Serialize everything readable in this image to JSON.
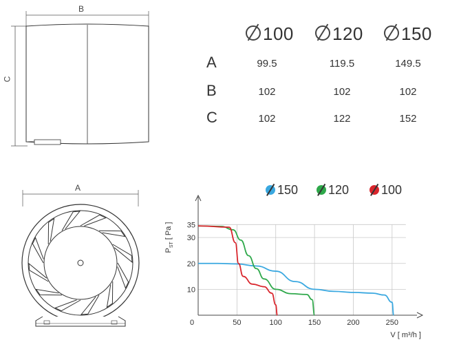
{
  "side_view": {
    "width_label": "B",
    "height_label": "C"
  },
  "front_view": {
    "width_label": "A"
  },
  "spec_table": {
    "columns": [
      "100",
      "120",
      "150"
    ],
    "rows": [
      {
        "label": "A",
        "values": [
          "99.5",
          "119.5",
          "149.5"
        ]
      },
      {
        "label": "B",
        "values": [
          "102",
          "102",
          "102"
        ]
      },
      {
        "label": "C",
        "values": [
          "102",
          "122",
          "152"
        ]
      }
    ]
  },
  "legend": [
    {
      "label": "150",
      "color": "#3aa8e0"
    },
    {
      "label": "120",
      "color": "#2ea84a"
    },
    {
      "label": "100",
      "color": "#d9252c"
    }
  ],
  "chart_data": {
    "type": "line",
    "xlabel": "V [ m³/h ]",
    "ylabel_main": "P",
    "ylabel_sub": "ST",
    "ylabel_unit": "[ Pa ]",
    "x_ticks": [
      0,
      50,
      100,
      150,
      200,
      250
    ],
    "y_ticks": [
      10,
      20,
      30,
      35
    ],
    "xlim": [
      0,
      275
    ],
    "ylim": [
      0,
      42
    ],
    "series": [
      {
        "name": "150",
        "color": "#3aa8e0",
        "x": [
          0,
          25,
          50,
          75,
          100,
          125,
          150,
          175,
          200,
          225,
          240,
          250,
          252
        ],
        "y": [
          20,
          20,
          19.8,
          19,
          17,
          13,
          10,
          9.2,
          8.8,
          8.5,
          7.8,
          5,
          0
        ]
      },
      {
        "name": "120",
        "color": "#2ea84a",
        "x": [
          0,
          30,
          45,
          55,
          65,
          75,
          85,
          100,
          120,
          140,
          147,
          150
        ],
        "y": [
          34.5,
          34.3,
          33,
          29,
          23,
          18,
          14,
          10,
          8.3,
          8,
          6,
          0
        ]
      },
      {
        "name": "100",
        "color": "#d9252c",
        "x": [
          0,
          40,
          48,
          52,
          58,
          70,
          85,
          95,
          100,
          102
        ],
        "y": [
          34.5,
          34,
          28,
          20,
          15,
          12,
          11,
          8.5,
          4,
          0
        ]
      }
    ]
  }
}
